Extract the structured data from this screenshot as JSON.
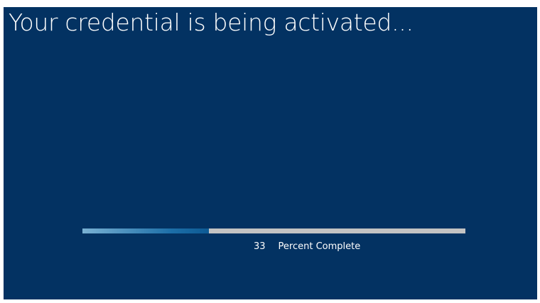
{
  "title": "Your credential is being activated...",
  "progress": {
    "value": 33,
    "label": "Percent Complete"
  }
}
